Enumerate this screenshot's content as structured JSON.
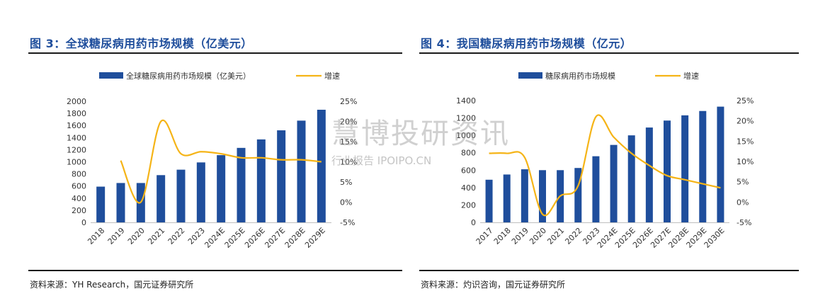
{
  "colors": {
    "bar": "#1f4e9c",
    "line": "#f5b417",
    "title": "#1f4e9c"
  },
  "left": {
    "title": "图 3：全球糖尿病用药市场规模（亿美元）",
    "source": "资料来源：YH Research，国元证券研究所"
  },
  "right": {
    "title": "图 4：我国糖尿病用药市场规模（亿元）",
    "source": "资料来源：灼识咨询，国元证券研究所"
  },
  "watermark": {
    "big": "慧博投研资讯",
    "small": "行业报告 IPOIPO.CN"
  },
  "chart_data": [
    {
      "type": "bar",
      "categories": [
        "2018",
        "2019",
        "2020",
        "2021",
        "2022",
        "2023",
        "2024E",
        "2025E",
        "2026E",
        "2027E",
        "2028E",
        "2029E"
      ],
      "series": [
        {
          "name": "全球糖尿病用药市场规模（亿美元）",
          "type": "bar",
          "axis": "left",
          "values": [
            590,
            650,
            650,
            780,
            870,
            990,
            1110,
            1230,
            1370,
            1520,
            1680,
            1860
          ]
        },
        {
          "name": "增速",
          "type": "line",
          "axis": "right",
          "values": [
            null,
            10.3,
            0,
            20,
            12,
            12.5,
            12,
            11,
            11,
            10.5,
            10.5,
            10
          ]
        }
      ],
      "ylim_left": [
        0,
        2000
      ],
      "yticks_left": [
        "0",
        "200",
        "400",
        "600",
        "800",
        "1000",
        "1200",
        "1400",
        "1600",
        "1800",
        "2000"
      ],
      "ylim_right": [
        -5,
        25
      ],
      "yticks_right": [
        "-5%",
        "0%",
        "5%",
        "10%",
        "15%",
        "20%",
        "25%"
      ],
      "legend": "top"
    },
    {
      "type": "bar",
      "categories": [
        "2017",
        "2018",
        "2019",
        "2020",
        "2021",
        "2022",
        "2023",
        "2024E",
        "2025E",
        "2026E",
        "2027E",
        "2028E",
        "2029E",
        "2030E"
      ],
      "series": [
        {
          "name": "糖尿病用药市场规模",
          "type": "bar",
          "axis": "left",
          "values": [
            490,
            550,
            610,
            600,
            600,
            625,
            760,
            890,
            1000,
            1090,
            1170,
            1230,
            1280,
            1330
          ]
        },
        {
          "name": "增速",
          "type": "line",
          "axis": "right",
          "values": [
            12,
            12,
            11,
            -3,
            1.5,
            4,
            21,
            16,
            12,
            9,
            6.5,
            5.5,
            4.5,
            3.5
          ]
        }
      ],
      "ylim_left": [
        0,
        1400
      ],
      "yticks_left": [
        "0",
        "200",
        "400",
        "600",
        "800",
        "1000",
        "1200",
        "1400"
      ],
      "ylim_right": [
        -5,
        25
      ],
      "yticks_right": [
        "-5%",
        "0%",
        "5%",
        "10%",
        "15%",
        "20%",
        "25%"
      ],
      "legend": "top"
    }
  ]
}
